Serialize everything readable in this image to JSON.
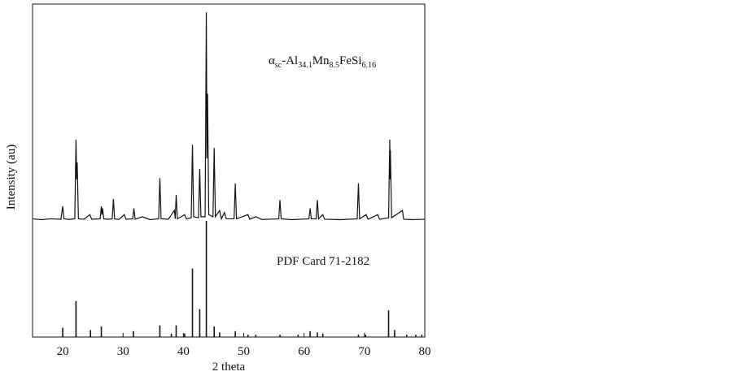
{
  "chart_data": [
    {
      "type": "line",
      "ylabel": "Intensity (au)",
      "color": "#111111",
      "annotation": [
        "α",
        "sc",
        "-Al",
        "34.1",
        "Mn",
        "8.5",
        "FeSi",
        "6.16"
      ],
      "ylim": [
        -7,
        104
      ],
      "x": [
        15,
        16.5,
        18,
        19.7,
        20,
        20.2,
        21,
        22,
        22.2,
        22.3,
        22.4,
        22.6,
        23.5,
        24.5,
        24.8,
        26.2,
        26.4,
        26.5,
        26.6,
        26.8,
        27.5,
        28.2,
        28.4,
        28.6,
        29.3,
        30.2,
        30.5,
        31.6,
        31.8,
        32,
        33.2,
        34.5,
        35.9,
        36.1,
        36.3,
        37.5,
        38.5,
        38.65,
        38.8,
        39,
        40.2,
        40.5,
        41.3,
        41.5,
        41.7,
        42.5,
        42.7,
        42.9,
        43.6,
        43.8,
        43.9,
        44,
        44.2,
        44.9,
        45.1,
        45.3,
        46,
        46.3,
        46.8,
        47.1,
        48.4,
        48.6,
        48.8,
        50.7,
        51,
        52,
        53,
        55.8,
        56,
        56.2,
        58,
        60.8,
        61,
        61.2,
        62,
        62.2,
        62.4,
        63.1,
        63.4,
        66,
        68.8,
        69,
        69.2,
        70.3,
        70.6,
        72.2,
        72.5,
        74,
        74.2,
        74.25,
        74.3,
        74.5,
        76.3,
        76.5,
        78,
        80
      ],
      "values": [
        1,
        0.6,
        1,
        0.8,
        7,
        1,
        0.7,
        1,
        39,
        20,
        28,
        1,
        0.8,
        3,
        0.8,
        1,
        7,
        3,
        6,
        1,
        0.8,
        1,
        10.5,
        1,
        0.7,
        3,
        0.8,
        1,
        6,
        0.8,
        2,
        0.6,
        1,
        20.5,
        1,
        0.8,
        5,
        1,
        12.5,
        1,
        3,
        1,
        1.5,
        36.5,
        2,
        1.5,
        25,
        2,
        2,
        100,
        30,
        61,
        3,
        2,
        35,
        2,
        5,
        1,
        4,
        1,
        1,
        18,
        1,
        3,
        0.8,
        2,
        0.7,
        1,
        10,
        1,
        0.6,
        1,
        6,
        1,
        1,
        10,
        1,
        3,
        0.8,
        0.6,
        1,
        18,
        1,
        3,
        0.8,
        3,
        0.8,
        1.5,
        39,
        20,
        34,
        1.5,
        5,
        0.8,
        0.6,
        0.8
      ]
    },
    {
      "type": "stem",
      "annotation": "PDF Card 71-2182",
      "xlabel": "2 theta",
      "color": "#111111",
      "xlim": [
        15,
        80
      ],
      "xticks": [
        20,
        30,
        40,
        50,
        60,
        70,
        80
      ],
      "ylim": [
        0,
        100
      ],
      "x": [
        20,
        22.2,
        24.6,
        26.4,
        31.7,
        36.1,
        38,
        38.8,
        40.2,
        41.5,
        42.7,
        43.8,
        45.1,
        46,
        48.6,
        50.7,
        52,
        56,
        59,
        61,
        62.2,
        63.1,
        69,
        70.2,
        74,
        75,
        77,
        78.5,
        79.5
      ],
      "values": [
        8,
        31,
        6,
        9,
        5,
        10,
        3,
        10,
        3,
        59,
        24,
        100,
        9,
        4,
        5,
        2,
        2,
        2,
        2,
        5,
        4,
        3,
        2,
        2,
        23,
        6,
        2,
        2,
        2
      ]
    }
  ]
}
